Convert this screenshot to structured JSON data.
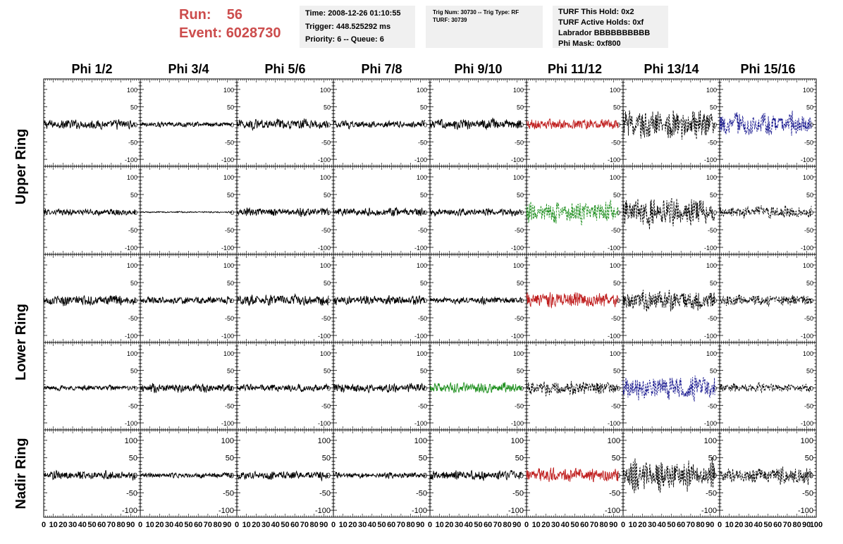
{
  "header": {
    "run_label": "Run:",
    "run_value": "56",
    "event_label": "Event:",
    "event_value": "6028730",
    "time_box": [
      "Time: 2008-12-26 01:10:55",
      "Trigger: 448.525292 ms",
      "Priority: 6 -- Queue: 6"
    ],
    "trig_box": [
      "Trig Num: 30730 -- Trig Type: RF",
      "",
      "TURF: 30739"
    ],
    "turf_box": [
      "TURF This Hold: 0x2",
      "TURF Active Holds: 0xf",
      "Labrador BBBBBBBBBB",
      "Phi Mask: 0xf800"
    ]
  },
  "colors": {
    "header_red": "#cc4c4c",
    "box_bg": "#f0f0f0",
    "trace_black": "#000000",
    "trace_red": "#c02020",
    "trace_green": "#209020",
    "trace_blue": "#1a1a90"
  },
  "chart_data": {
    "type": "line",
    "columns": [
      "Phi 1/2",
      "Phi 3/4",
      "Phi 5/6",
      "Phi 7/8",
      "Phi 9/10",
      "Phi 11/12",
      "Phi 13/14",
      "Phi 15/16"
    ],
    "rows": [
      "Upper Ring",
      "Upper Ring",
      "Lower Ring",
      "Lower Ring",
      "Nadir Ring"
    ],
    "row_labels": [
      "Upper Ring",
      "Lower Ring",
      "Nadir Ring"
    ],
    "xlim": [
      0,
      100
    ],
    "ylim": [
      -120,
      130
    ],
    "xticks": [
      "0",
      "10",
      "20",
      "30",
      "40",
      "50",
      "60",
      "70",
      "80",
      "90",
      "100"
    ],
    "yticks": [
      "100",
      "50",
      "0",
      "-50",
      "-100"
    ],
    "x_range_data": [
      0,
      95
    ],
    "panels": [
      [
        {
          "style": "black",
          "amp": 13
        },
        {
          "style": "black",
          "amp": 7
        },
        {
          "style": "black",
          "amp": 14
        },
        {
          "style": "black",
          "amp": 10
        },
        {
          "style": "black",
          "amp": 14
        },
        {
          "style": "red",
          "amp": 14
        },
        {
          "style": "black-dash",
          "amp": 42
        },
        {
          "style": "blue-dash",
          "amp": 32
        }
      ],
      [
        {
          "style": "black",
          "amp": 9
        },
        {
          "style": "black",
          "amp": 2
        },
        {
          "style": "black",
          "amp": 11
        },
        {
          "style": "black",
          "amp": 11
        },
        {
          "style": "black",
          "amp": 10
        },
        {
          "style": "green-dash",
          "amp": 28
        },
        {
          "style": "black-dash",
          "amp": 38
        },
        {
          "style": "black-dash",
          "amp": 16
        }
      ],
      [
        {
          "style": "black",
          "amp": 14
        },
        {
          "style": "black",
          "amp": 10
        },
        {
          "style": "black",
          "amp": 15
        },
        {
          "style": "black",
          "amp": 12
        },
        {
          "style": "black",
          "amp": 9
        },
        {
          "style": "red",
          "amp": 22
        },
        {
          "style": "black-dash",
          "amp": 28
        },
        {
          "style": "black-dash",
          "amp": 16
        }
      ],
      [
        {
          "style": "black",
          "amp": 7
        },
        {
          "style": "black",
          "amp": 12
        },
        {
          "style": "black",
          "amp": 10
        },
        {
          "style": "black",
          "amp": 12
        },
        {
          "style": "green",
          "amp": 14
        },
        {
          "style": "black-dash",
          "amp": 18
        },
        {
          "style": "blue-dash",
          "amp": 34
        },
        {
          "style": "black-dash",
          "amp": 12
        }
      ],
      [
        {
          "style": "black",
          "amp": 12
        },
        {
          "style": "black",
          "amp": 7
        },
        {
          "style": "black",
          "amp": 11
        },
        {
          "style": "black",
          "amp": 8
        },
        {
          "style": "black",
          "amp": 13
        },
        {
          "style": "red",
          "amp": 20
        },
        {
          "style": "black-dash",
          "amp": 40
        },
        {
          "style": "black-dash",
          "amp": 22
        }
      ]
    ]
  }
}
